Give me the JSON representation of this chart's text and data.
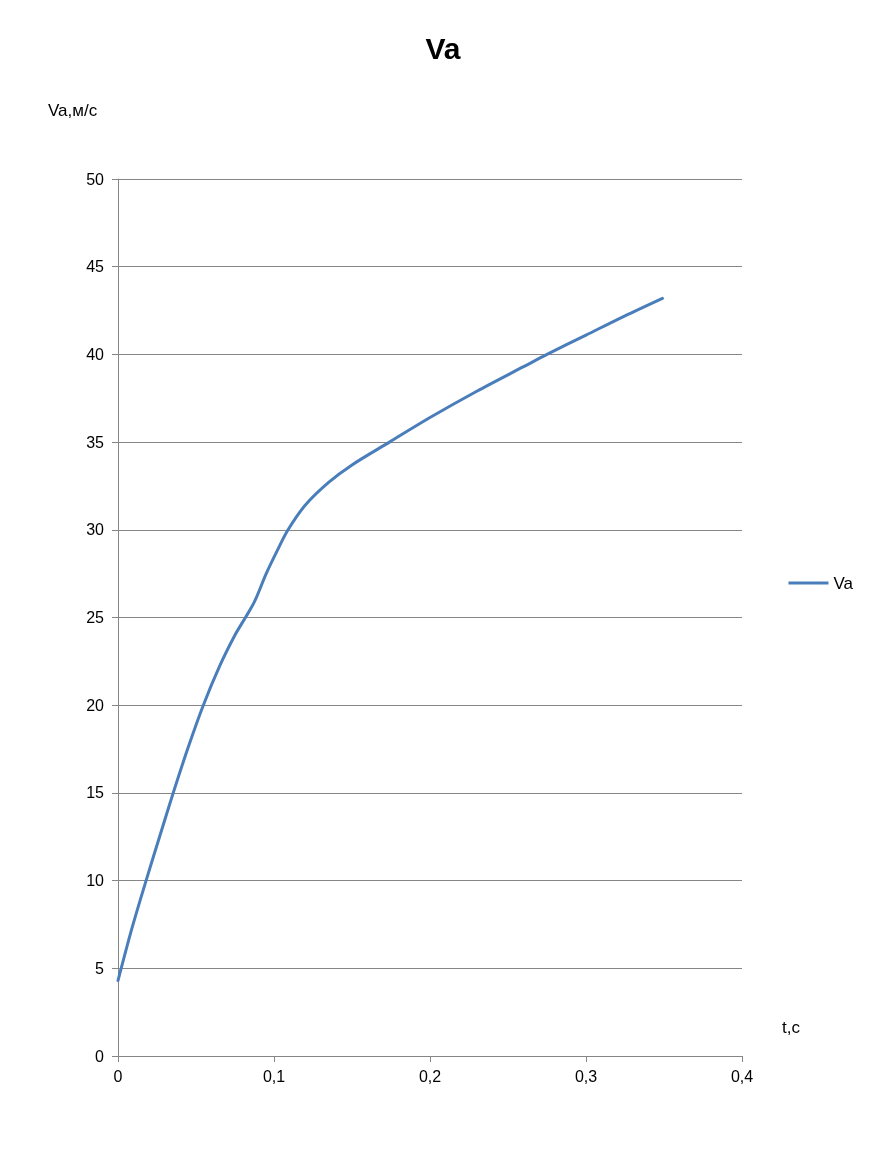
{
  "chart_data": {
    "type": "line",
    "title": "Va",
    "xlabel": "t,c",
    "ylabel": "Va,м/с",
    "xlim": [
      0,
      0.4
    ],
    "xticks": [
      0,
      {
        "value": 0.1,
        "label": "0,1"
      },
      {
        "value": 0.2,
        "label": "0,2"
      },
      {
        "value": 0.3,
        "label": "0,3"
      },
      {
        "value": 0.4,
        "label": "0,4"
      }
    ],
    "ylim": [
      0,
      50
    ],
    "yticks": [
      0,
      5,
      10,
      15,
      20,
      25,
      30,
      35,
      40,
      45,
      50
    ],
    "grid": "y",
    "legend": "right",
    "marker": "none",
    "line_style": "solid",
    "series": [
      {
        "name": "Va",
        "color": "#4a7ebb",
        "x": [
          0,
          0.009,
          0.018,
          0.027,
          0.0354,
          0.045,
          0.0547,
          0.065,
          0.075,
          0.0817,
          0.0875,
          0.095,
          0.102,
          0.109,
          0.12,
          0.135,
          0.15,
          0.174,
          0.2,
          0.23,
          0.26,
          0.275,
          0.3,
          0.325,
          0.349
        ],
        "values": [
          4.3,
          7.3,
          10,
          12.6,
          15,
          17.6,
          20,
          22.2,
          24,
          25,
          25.9,
          27.5,
          28.8,
          30,
          31.4,
          32.7,
          33.7,
          35,
          36.4,
          37.9,
          39.3,
          40,
          41.1,
          42.2,
          43.2
        ]
      }
    ]
  }
}
